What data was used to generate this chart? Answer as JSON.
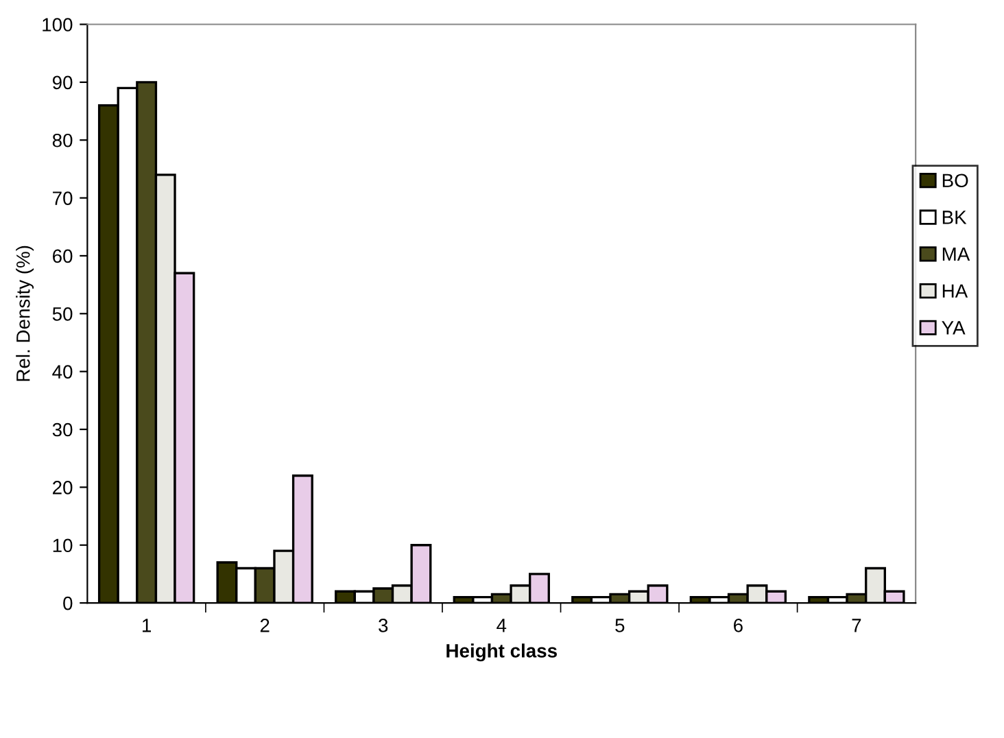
{
  "chart_data": {
    "type": "bar",
    "xlabel": "Height class",
    "ylabel": "Rel. Density (%)",
    "categories": [
      "1",
      "2",
      "3",
      "4",
      "5",
      "6",
      "7"
    ],
    "series": [
      {
        "name": "BO",
        "color": "#333300",
        "values": [
          86,
          7,
          2,
          1,
          1,
          1,
          1
        ]
      },
      {
        "name": "BK",
        "color": "#ffffff",
        "values": [
          89,
          6,
          2,
          1,
          1,
          1,
          1
        ]
      },
      {
        "name": "MA",
        "color": "#4a4a1c",
        "values": [
          90,
          6,
          2.5,
          1.5,
          1.5,
          1.5,
          1.5
        ]
      },
      {
        "name": "HA",
        "color": "#e8e8e2",
        "values": [
          74,
          9,
          3,
          3,
          2,
          3,
          6
        ]
      },
      {
        "name": "YA",
        "color": "#e8cce8",
        "values": [
          57,
          22,
          10,
          5,
          3,
          2,
          2
        ]
      }
    ],
    "ylim": [
      0,
      100
    ],
    "yticks": [
      0,
      10,
      20,
      30,
      40,
      50,
      60,
      70,
      80,
      90,
      100
    ],
    "grid": false,
    "legend": "right"
  }
}
